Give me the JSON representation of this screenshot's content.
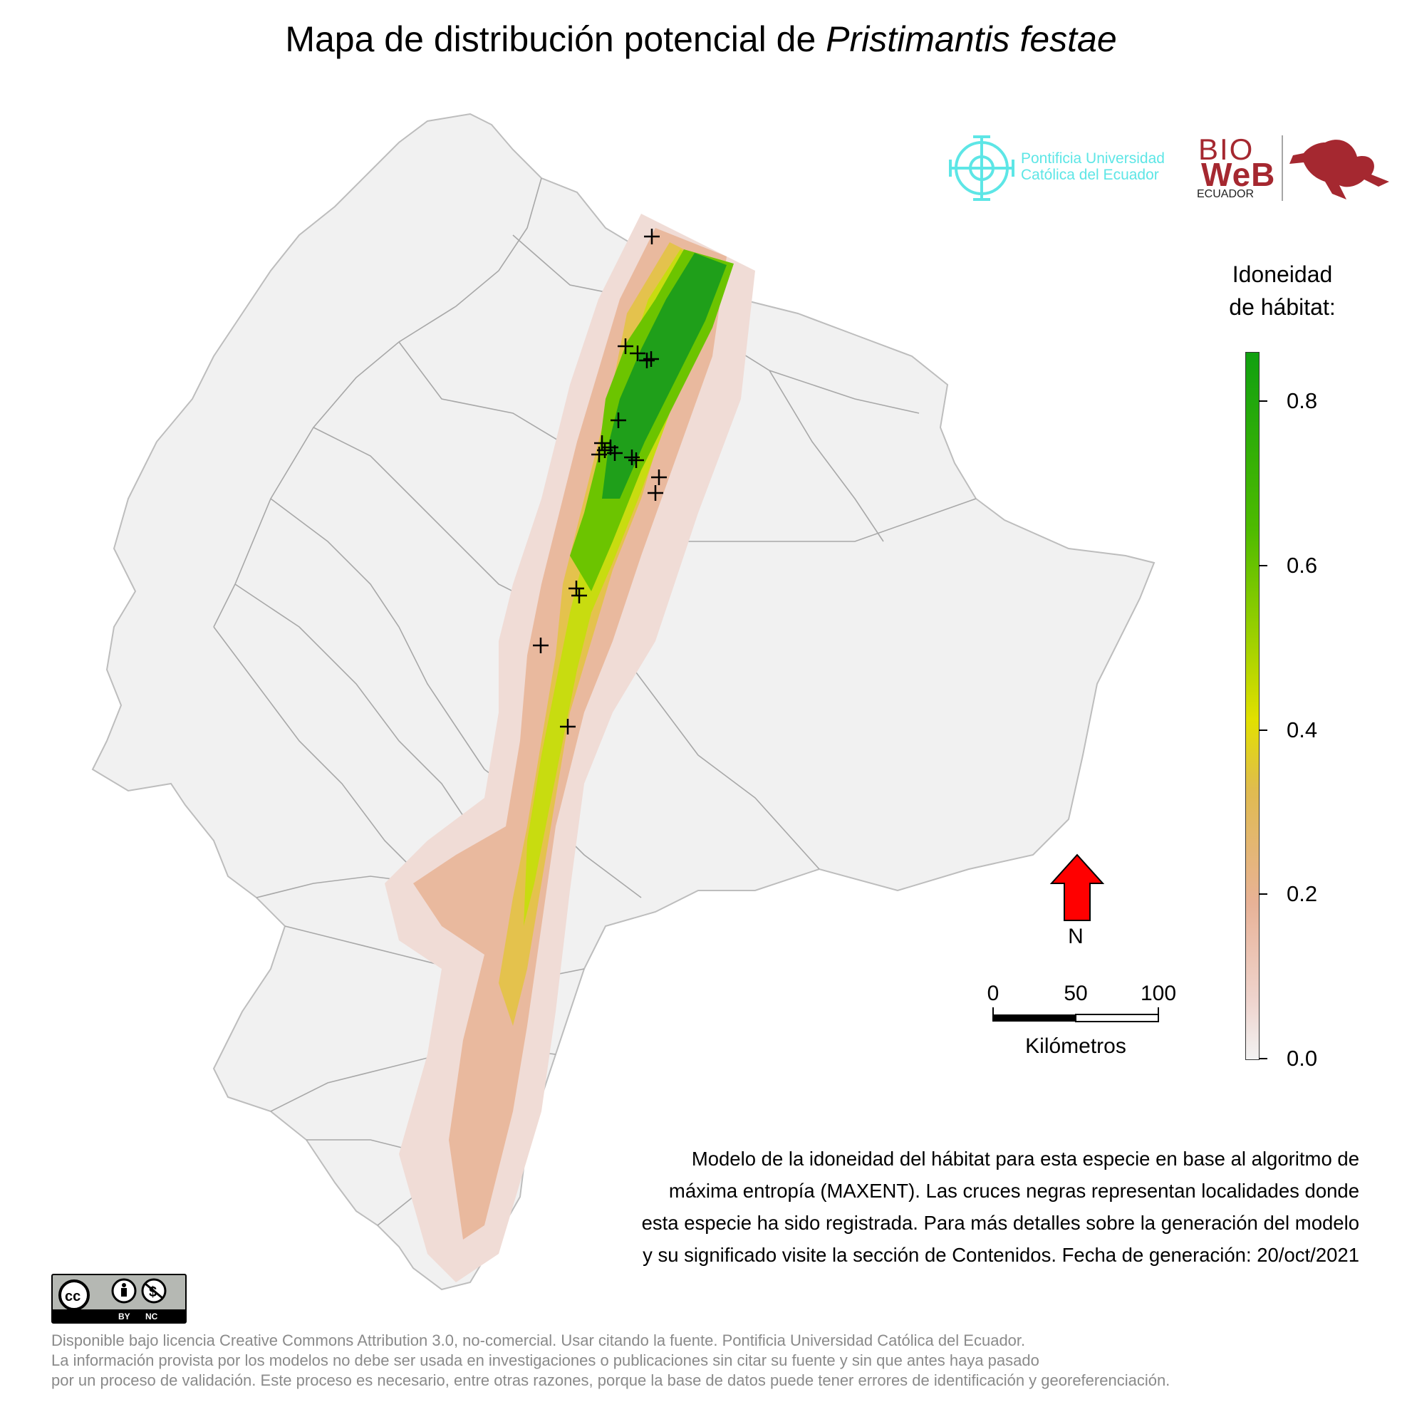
{
  "title": {
    "prefix": "Mapa de distribución potencial de ",
    "species": "Pristimantis festae"
  },
  "legend": {
    "title_line1": "Idoneidad",
    "title_line2": "de hábitat:",
    "ticks": [
      {
        "value": 0.8,
        "label": "0.8"
      },
      {
        "value": 0.6,
        "label": "0.6"
      },
      {
        "value": 0.4,
        "label": "0.4"
      },
      {
        "value": 0.2,
        "label": "0.2"
      },
      {
        "value": 0.0,
        "label": "0.0"
      }
    ],
    "max": 0.86,
    "colors": {
      "low": "#f2f2f2",
      "mid_low": "#e8b297",
      "mid": "#e2e000",
      "high": "#10a010"
    }
  },
  "north_arrow": {
    "label": "N",
    "color": "#ff0000"
  },
  "scale_bar": {
    "labels": [
      "0",
      "50",
      "100"
    ],
    "unit": "Kilómetros"
  },
  "description": [
    "Modelo de la idoneidad del hábitat para esta especie en base al algoritmo de",
    "máxima entropía (MAXENT). Las cruces negras representan localidades donde",
    "esta especie ha sido registrada. Para más detalles sobre la generación del modelo",
    "y su significado visite la sección de Contenidos. Fecha de generación: 20/oct/2021"
  ],
  "footer": [
    "Disponible bajo licencia Creative Commons Attribution 3.0, no-comercial. Usar citando la fuente. Pontificia Universidad Católica del Ecuador.",
    "La información provista por los modelos no debe ser usada en investigaciones o publicaciones sin citar su fuente y sin que antes haya pasado",
    "por un proceso de validación. Este proceso es necesario, entre otras razones, porque la base de datos puede tener errores de identificación y georeferenciación."
  ],
  "logos": {
    "puce_line1": "Pontificia Universidad",
    "puce_line2": "Católica del Ecuador",
    "bioweb_bio": "BIO",
    "bioweb_web": "WeB",
    "bioweb_country": "ECUADOR",
    "cc_by": "BY",
    "cc_nc": "NC"
  }
}
